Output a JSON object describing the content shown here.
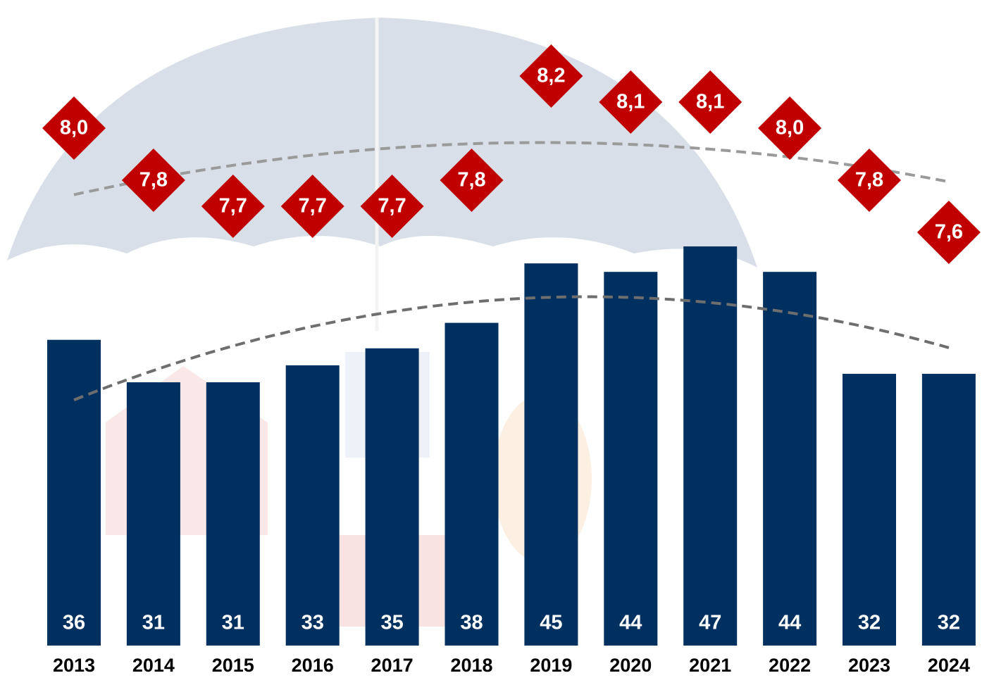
{
  "chart_data": {
    "type": "combo",
    "categories": [
      "2013",
      "2014",
      "2015",
      "2016",
      "2017",
      "2018",
      "2019",
      "2020",
      "2021",
      "2022",
      "2023",
      "2024"
    ],
    "series": [
      {
        "type": "bar",
        "color": "#00305f",
        "values": [
          36,
          31,
          31,
          33,
          35,
          38,
          45,
          44,
          47,
          44,
          32,
          32
        ]
      },
      {
        "type": "diamond",
        "color": "#c00000",
        "values": [
          8.0,
          7.8,
          7.7,
          7.7,
          7.7,
          7.8,
          8.2,
          8.1,
          8.1,
          8.0,
          7.8,
          7.6
        ],
        "value_labels": [
          "8,0",
          "7,8",
          "7,7",
          "7,7",
          "7,7",
          "7,8",
          "8,2",
          "8,1",
          "8,1",
          "8,0",
          "7,8",
          "7,6"
        ]
      }
    ],
    "trendline": true
  }
}
